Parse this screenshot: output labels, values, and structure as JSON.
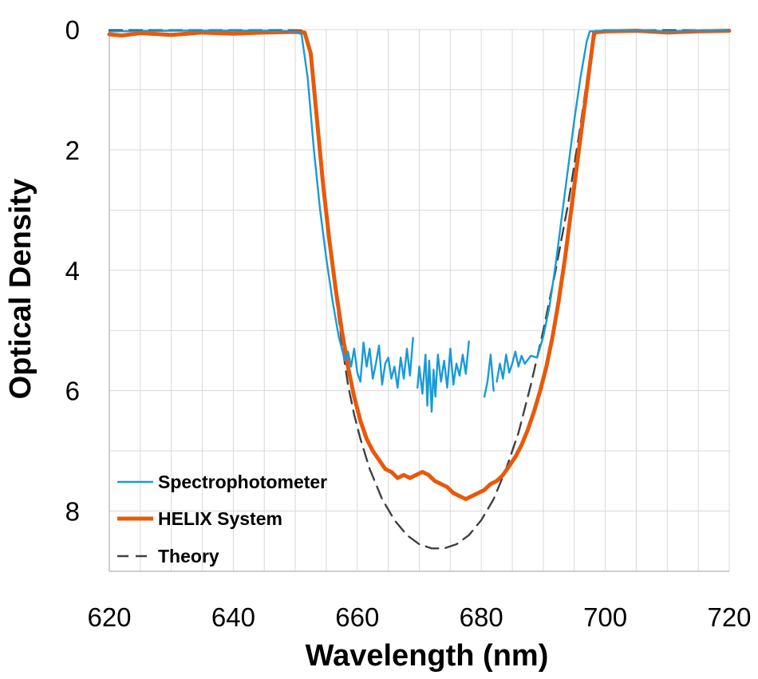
{
  "chart_data": {
    "type": "line",
    "title": "",
    "xlabel": "Wavelength (nm)",
    "ylabel": "Optical Density",
    "xlim": [
      620,
      720
    ],
    "ylim": [
      0,
      9
    ],
    "y_inverted": true,
    "x_ticks": [
      620,
      640,
      660,
      680,
      700,
      720
    ],
    "x_tick_labels": [
      "620",
      "640",
      "660",
      "680",
      "700",
      "720"
    ],
    "y_ticks": [
      0,
      2,
      4,
      6,
      8
    ],
    "y_tick_labels": [
      "0",
      "2",
      "4",
      "6",
      "8"
    ],
    "x_grid_step": 5,
    "y_grid_step": 1,
    "grid": true,
    "legend_position": "bottom-left",
    "series": [
      {
        "name": "Spectrophotometer",
        "color": "#1a9ad6",
        "style": "solid",
        "segments": [
          [
            [
              620,
              0.03
            ],
            [
              630,
              0.02
            ],
            [
              640,
              0.02
            ],
            [
              645,
              0.02
            ],
            [
              650,
              0.03
            ],
            [
              651,
              0.08
            ],
            [
              652,
              0.8
            ],
            [
              653,
              2.0
            ],
            [
              654,
              3.0
            ],
            [
              655,
              3.8
            ],
            [
              656,
              4.5
            ],
            [
              657,
              5.1
            ],
            [
              658,
              5.5
            ],
            [
              658.5,
              5.35
            ],
            [
              659,
              5.6
            ],
            [
              659.5,
              5.3
            ],
            [
              660,
              5.7
            ],
            [
              660.5,
              5.85
            ],
            [
              661,
              5.2
            ],
            [
              661.5,
              5.6
            ],
            [
              662,
              5.3
            ],
            [
              662.5,
              5.8
            ],
            [
              663,
              5.55
            ],
            [
              663.5,
              5.25
            ],
            [
              664,
              5.9
            ],
            [
              664.5,
              5.55
            ],
            [
              665,
              5.45
            ],
            [
              665.5,
              5.8
            ],
            [
              666,
              5.6
            ],
            [
              666.5,
              5.95
            ],
            [
              667,
              5.45
            ],
            [
              667.5,
              5.8
            ],
            [
              668,
              5.3
            ],
            [
              668.5,
              5.75
            ],
            [
              669,
              5.12
            ]
          ],
          [
            [
              669.7,
              5.95
            ],
            [
              670,
              5.6
            ],
            [
              670.5,
              6.05
            ],
            [
              671,
              5.4
            ],
            [
              671.3,
              6.25
            ],
            [
              671.6,
              5.5
            ],
            [
              672,
              6.35
            ],
            [
              672.3,
              5.65
            ],
            [
              672.6,
              6.1
            ],
            [
              673,
              5.4
            ],
            [
              673.5,
              5.85
            ],
            [
              674,
              5.5
            ],
            [
              674.5,
              5.95
            ],
            [
              675,
              5.3
            ],
            [
              675.5,
              5.9
            ],
            [
              676,
              5.55
            ],
            [
              676.5,
              5.75
            ],
            [
              677,
              5.4
            ],
            [
              677.5,
              5.72
            ],
            [
              678,
              5.18
            ]
          ],
          [
            [
              680.5,
              6.1
            ],
            [
              681,
              5.85
            ],
            [
              681.5,
              5.4
            ],
            [
              682,
              6.0
            ]
          ],
          [
            [
              682.5,
              5.85
            ],
            [
              683,
              5.55
            ],
            [
              683.5,
              5.8
            ],
            [
              684,
              5.4
            ],
            [
              684.5,
              5.7
            ],
            [
              685,
              5.55
            ],
            [
              685.5,
              5.35
            ],
            [
              686,
              5.6
            ],
            [
              686.5,
              5.42
            ],
            [
              687,
              5.55
            ],
            [
              688,
              5.42
            ],
            [
              689,
              5.45
            ],
            [
              690,
              5.1
            ],
            [
              691,
              4.6
            ],
            [
              692,
              3.9
            ],
            [
              693,
              3.1
            ],
            [
              694,
              2.3
            ],
            [
              695,
              1.5
            ],
            [
              696,
              0.8
            ],
            [
              697,
              0.2
            ],
            [
              697.5,
              0.03
            ],
            [
              700,
              0.02
            ],
            [
              710,
              0.03
            ],
            [
              720,
              0.02
            ]
          ]
        ]
      },
      {
        "name": "HELIX System",
        "color": "#e8590c",
        "style": "solid",
        "segments": [
          [
            [
              620,
              0.08
            ],
            [
              622,
              0.1
            ],
            [
              625,
              0.06
            ],
            [
              630,
              0.09
            ],
            [
              635,
              0.05
            ],
            [
              640,
              0.07
            ],
            [
              645,
              0.05
            ],
            [
              650,
              0.04
            ],
            [
              651.5,
              0.05
            ],
            [
              652.5,
              0.4
            ],
            [
              653.5,
              1.5
            ],
            [
              654.5,
              2.6
            ],
            [
              655.5,
              3.5
            ],
            [
              656.5,
              4.3
            ],
            [
              657.5,
              5.0
            ],
            [
              658.5,
              5.6
            ],
            [
              659.5,
              6.1
            ],
            [
              660.5,
              6.5
            ],
            [
              661.5,
              6.8
            ],
            [
              662.5,
              7.0
            ],
            [
              663.5,
              7.15
            ],
            [
              664.5,
              7.3
            ],
            [
              665.5,
              7.35
            ],
            [
              666.5,
              7.45
            ],
            [
              667.5,
              7.4
            ],
            [
              668.5,
              7.45
            ],
            [
              669.5,
              7.4
            ],
            [
              670.5,
              7.35
            ],
            [
              671.5,
              7.4
            ],
            [
              672.5,
              7.5
            ],
            [
              673.5,
              7.55
            ],
            [
              674.5,
              7.6
            ],
            [
              675.5,
              7.7
            ],
            [
              676.5,
              7.75
            ],
            [
              677.5,
              7.8
            ],
            [
              678.5,
              7.75
            ],
            [
              679.5,
              7.7
            ],
            [
              680.5,
              7.65
            ],
            [
              681.5,
              7.55
            ],
            [
              682.5,
              7.5
            ],
            [
              683.5,
              7.4
            ],
            [
              684.5,
              7.25
            ],
            [
              685.5,
              7.1
            ],
            [
              686.5,
              6.9
            ],
            [
              687.5,
              6.65
            ],
            [
              688.5,
              6.35
            ],
            [
              689.5,
              6.0
            ],
            [
              690.5,
              5.6
            ],
            [
              691.5,
              5.1
            ],
            [
              692.5,
              4.5
            ],
            [
              693.5,
              3.8
            ],
            [
              694.5,
              3.0
            ],
            [
              695.5,
              2.2
            ],
            [
              696.5,
              1.4
            ],
            [
              697.5,
              0.6
            ],
            [
              698.2,
              0.05
            ],
            [
              700,
              0.03
            ],
            [
              705,
              0.02
            ],
            [
              710,
              0.05
            ],
            [
              715,
              0.03
            ],
            [
              720,
              0.02
            ]
          ]
        ]
      },
      {
        "name": "Theory",
        "color": "#404040",
        "style": "dashed",
        "segments": [
          [
            [
              620,
              0.01
            ],
            [
              640,
              0.01
            ],
            [
              650,
              0.01
            ],
            [
              651.5,
              0.02
            ],
            [
              652.5,
              0.5
            ],
            [
              653.5,
              1.6
            ],
            [
              654.5,
              2.7
            ],
            [
              655.5,
              3.6
            ],
            [
              656.5,
              4.4
            ],
            [
              657.5,
              5.2
            ],
            [
              658.5,
              5.9
            ],
            [
              659.5,
              6.4
            ],
            [
              660.5,
              6.8
            ],
            [
              662,
              7.3
            ],
            [
              664,
              7.8
            ],
            [
              666,
              8.15
            ],
            [
              668,
              8.4
            ],
            [
              670,
              8.55
            ],
            [
              672,
              8.62
            ],
            [
              674,
              8.62
            ],
            [
              676,
              8.55
            ],
            [
              678,
              8.4
            ],
            [
              680,
              8.15
            ],
            [
              682,
              7.8
            ],
            [
              684,
              7.3
            ],
            [
              686,
              6.7
            ],
            [
              688,
              5.9
            ],
            [
              690,
              5.0
            ],
            [
              692,
              4.0
            ],
            [
              694,
              2.9
            ],
            [
              696,
              1.6
            ],
            [
              697.5,
              0.5
            ],
            [
              698.5,
              0.02
            ],
            [
              700,
              0.01
            ],
            [
              720,
              0.01
            ]
          ]
        ]
      }
    ]
  }
}
